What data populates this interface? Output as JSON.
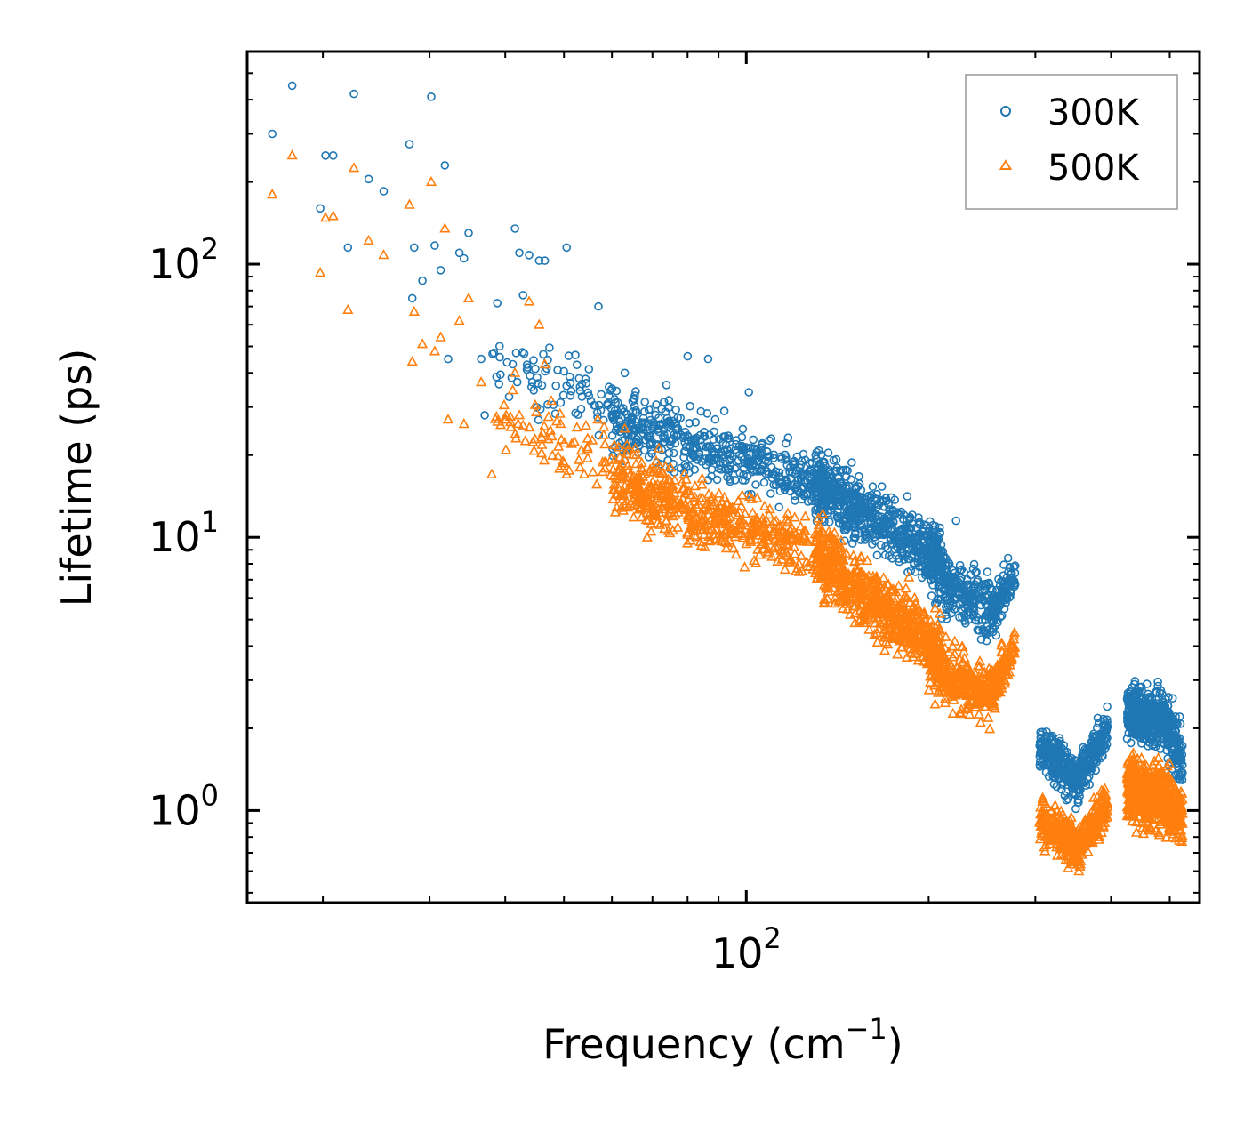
{
  "chart_data": {
    "type": "scatter",
    "title": "",
    "xlabel": "Frequency (cm",
    "xlabel_sup": "−1",
    "xlabel_tail": ")",
    "ylabel": "Lifetime (ps)",
    "xscale": "log",
    "yscale": "log",
    "xlim": [
      15,
      560
    ],
    "ylim": [
      0.46,
      600
    ],
    "x_ticks": [
      {
        "value": 100,
        "base": "10",
        "exp": "2"
      }
    ],
    "y_ticks": [
      {
        "value": 1,
        "base": "10",
        "exp": "0"
      },
      {
        "value": 10,
        "base": "10",
        "exp": "1"
      },
      {
        "value": 100,
        "base": "10",
        "exp": "2"
      }
    ],
    "legend": {
      "position": "top-right"
    },
    "series": [
      {
        "name": "300K",
        "color": "#1f77b4",
        "marker": "circle",
        "anchor_points": [
          [
            16.5,
            300
          ],
          [
            17.8,
            450
          ],
          [
            19.8,
            160
          ],
          [
            20.2,
            250
          ],
          [
            20.8,
            250
          ],
          [
            22.0,
            115
          ],
          [
            22.5,
            420
          ],
          [
            23.8,
            205
          ],
          [
            25.2,
            185
          ],
          [
            27.8,
            275
          ],
          [
            28.1,
            75
          ],
          [
            28.3,
            115
          ],
          [
            29.2,
            87
          ],
          [
            30.2,
            410
          ],
          [
            30.6,
            117
          ],
          [
            31.3,
            95
          ],
          [
            31.8,
            230
          ],
          [
            32.2,
            45
          ],
          [
            33.6,
            110
          ],
          [
            34.2,
            105
          ],
          [
            34.8,
            130
          ],
          [
            36.5,
            45
          ],
          [
            37.0,
            28
          ],
          [
            38.8,
            72
          ],
          [
            41.5,
            135
          ],
          [
            42.2,
            110
          ],
          [
            42.8,
            77
          ],
          [
            43.8,
            108
          ],
          [
            45.5,
            103
          ],
          [
            46.5,
            103
          ],
          [
            50.5,
            115
          ],
          [
            57.0,
            70
          ],
          [
            63.0,
            40
          ],
          [
            80.0,
            46
          ],
          [
            86.5,
            45
          ],
          [
            92.0,
            29
          ],
          [
            101.0,
            34
          ],
          [
            120.0,
            19
          ],
          [
            150.0,
            14.5
          ],
          [
            165.0,
            12
          ],
          [
            200.0,
            10.5
          ],
          [
            205.0,
            11
          ],
          [
            222.0,
            11.5
          ]
        ],
        "bands": [
          {
            "x": [
              38,
              75
            ],
            "y_center_start": 42,
            "y_center_end": 26,
            "spread_dec": 0.1,
            "count": 120
          },
          {
            "x": [
              60,
              140
            ],
            "y_center_start": 26,
            "y_center_end": 15.5,
            "spread_dec": 0.09,
            "count": 520
          },
          {
            "x": [
              130,
              210
            ],
            "y_center_start": 15.5,
            "y_center_end": 8.5,
            "spread_dec": 0.09,
            "count": 620
          },
          {
            "x": [
              200,
              260
            ],
            "y_center_start": 7.5,
            "y_center_end": 5.2,
            "spread_dec": 0.09,
            "count": 300
          },
          {
            "x": [
              255,
              278
            ],
            "y_center_start": 5.4,
            "y_center_end": 7.3,
            "spread_dec": 0.06,
            "count": 90
          },
          {
            "x": [
              305,
              355
            ],
            "y_center_start": 1.75,
            "y_center_end": 1.25,
            "spread_dec": 0.07,
            "count": 250
          },
          {
            "x": [
              355,
              395
            ],
            "y_center_start": 1.35,
            "y_center_end": 2.0,
            "spread_dec": 0.06,
            "count": 180
          },
          {
            "x": [
              425,
              500
            ],
            "y_center_start": 2.3,
            "y_center_end": 2.1,
            "spread_dec": 0.08,
            "count": 460
          },
          {
            "x": [
              495,
              525
            ],
            "y_center_start": 1.95,
            "y_center_end": 1.5,
            "spread_dec": 0.09,
            "count": 120
          }
        ]
      },
      {
        "name": "500K",
        "color": "#ff7f0e",
        "marker": "triangle",
        "anchor_points": [
          [
            16.5,
            180
          ],
          [
            17.8,
            250
          ],
          [
            19.8,
            93
          ],
          [
            20.2,
            148
          ],
          [
            20.8,
            150
          ],
          [
            22.0,
            68
          ],
          [
            22.5,
            225
          ],
          [
            23.8,
            122
          ],
          [
            25.2,
            108
          ],
          [
            27.8,
            165
          ],
          [
            28.1,
            44
          ],
          [
            28.3,
            67
          ],
          [
            29.2,
            51
          ],
          [
            30.2,
            200
          ],
          [
            30.6,
            48
          ],
          [
            31.3,
            54
          ],
          [
            31.8,
            135
          ],
          [
            32.2,
            27
          ],
          [
            33.6,
            62
          ],
          [
            34.2,
            26
          ],
          [
            34.8,
            75
          ],
          [
            36.5,
            37
          ],
          [
            38.0,
            17
          ],
          [
            41.5,
            40
          ],
          [
            42.2,
            28
          ],
          [
            43.8,
            73
          ],
          [
            45.5,
            60
          ],
          [
            46.5,
            43
          ],
          [
            50.5,
            17
          ],
          [
            54.0,
            17
          ],
          [
            63.0,
            25
          ],
          [
            80.0,
            12
          ],
          [
            92.0,
            14
          ],
          [
            120.0,
            9.2
          ],
          [
            150.0,
            7
          ],
          [
            165.0,
            6.5
          ],
          [
            180.0,
            4.3
          ],
          [
            200.0,
            3.5
          ],
          [
            205.0,
            5.5
          ]
        ],
        "bands": [
          {
            "x": [
              38,
              75
            ],
            "y_center_start": 28,
            "y_center_end": 16,
            "spread_dec": 0.1,
            "count": 120
          },
          {
            "x": [
              60,
              140
            ],
            "y_center_start": 15.5,
            "y_center_end": 8.5,
            "spread_dec": 0.09,
            "count": 520
          },
          {
            "x": [
              130,
              210
            ],
            "y_center_start": 8.5,
            "y_center_end": 3.8,
            "spread_dec": 0.1,
            "count": 620
          },
          {
            "x": [
              200,
              260
            ],
            "y_center_start": 3.4,
            "y_center_end": 2.6,
            "spread_dec": 0.09,
            "count": 300
          },
          {
            "x": [
              255,
              278
            ],
            "y_center_start": 2.8,
            "y_center_end": 4.0,
            "spread_dec": 0.06,
            "count": 90
          },
          {
            "x": [
              305,
              355
            ],
            "y_center_start": 0.95,
            "y_center_end": 0.72,
            "spread_dec": 0.07,
            "count": 250
          },
          {
            "x": [
              355,
              395
            ],
            "y_center_start": 0.75,
            "y_center_end": 1.05,
            "spread_dec": 0.06,
            "count": 180
          },
          {
            "x": [
              425,
              500
            ],
            "y_center_start": 1.2,
            "y_center_end": 1.1,
            "spread_dec": 0.1,
            "count": 460
          },
          {
            "x": [
              495,
              525
            ],
            "y_center_start": 1.05,
            "y_center_end": 0.95,
            "spread_dec": 0.09,
            "count": 120
          }
        ]
      }
    ]
  }
}
